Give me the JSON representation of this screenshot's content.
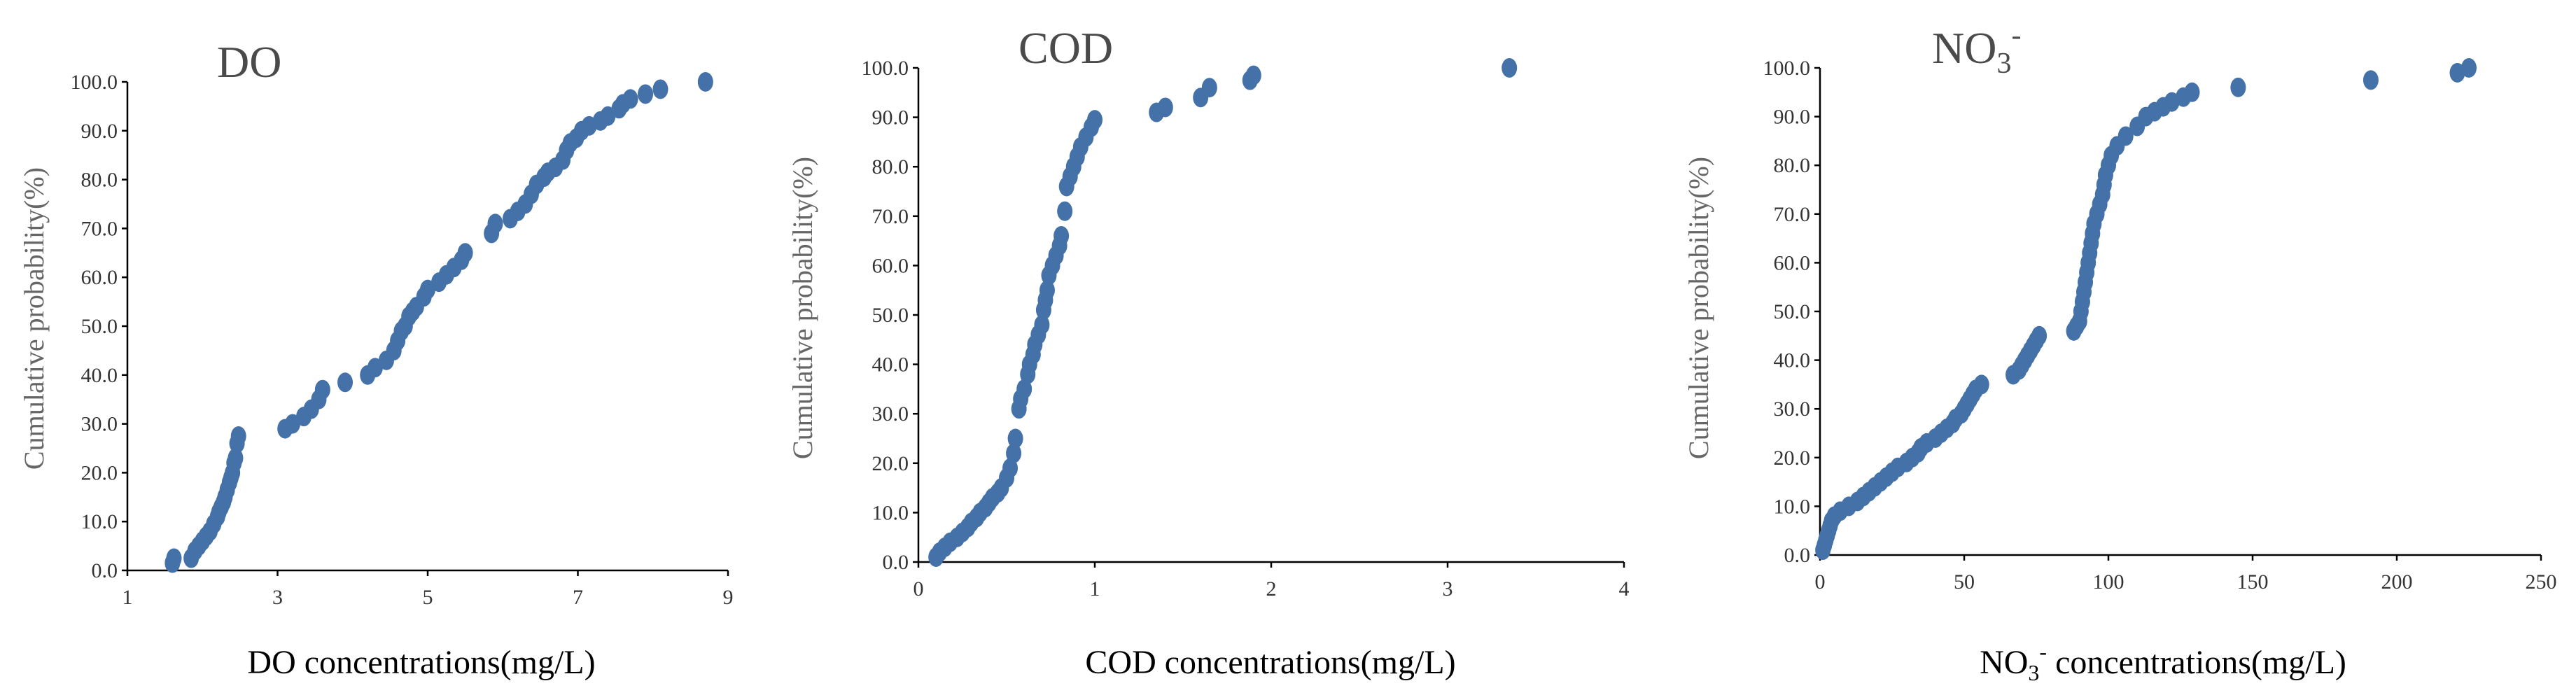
{
  "chart_data": [
    {
      "type": "scatter",
      "title": "DO",
      "xlabel": "DO concentrations(mg/L)",
      "ylabel": "Cumulative probability(%)",
      "xlim": [
        1,
        9
      ],
      "ylim": [
        0,
        100
      ],
      "xticks": [
        1,
        3,
        5,
        7,
        9
      ],
      "yticks": [
        0,
        10,
        20,
        30,
        40,
        50,
        60,
        70,
        80,
        90,
        100
      ],
      "tick_decimals": {
        "x": 0,
        "y": 1
      },
      "grid": false,
      "marker_color": "#4472A8",
      "points": [
        [
          1.6,
          1.5
        ],
        [
          1.62,
          2.5
        ],
        [
          1.85,
          2.5
        ],
        [
          1.9,
          4
        ],
        [
          1.95,
          5
        ],
        [
          2.0,
          6
        ],
        [
          2.05,
          7
        ],
        [
          2.1,
          8
        ],
        [
          2.15,
          9.5
        ],
        [
          2.2,
          11
        ],
        [
          2.22,
          12
        ],
        [
          2.25,
          13
        ],
        [
          2.28,
          14
        ],
        [
          2.3,
          15
        ],
        [
          2.33,
          16.5
        ],
        [
          2.36,
          18
        ],
        [
          2.38,
          19
        ],
        [
          2.4,
          20
        ],
        [
          2.42,
          22
        ],
        [
          2.44,
          23
        ],
        [
          2.46,
          26
        ],
        [
          2.48,
          27.5
        ],
        [
          3.1,
          29
        ],
        [
          3.2,
          30
        ],
        [
          3.35,
          31.5
        ],
        [
          3.45,
          33
        ],
        [
          3.55,
          35
        ],
        [
          3.6,
          37
        ],
        [
          3.9,
          38.5
        ],
        [
          4.2,
          40
        ],
        [
          4.3,
          41.5
        ],
        [
          4.45,
          43
        ],
        [
          4.55,
          45
        ],
        [
          4.6,
          47
        ],
        [
          4.65,
          49
        ],
        [
          4.7,
          50
        ],
        [
          4.75,
          52
        ],
        [
          4.8,
          53
        ],
        [
          4.85,
          54
        ],
        [
          4.95,
          56
        ],
        [
          5.0,
          57.5
        ],
        [
          5.15,
          59
        ],
        [
          5.25,
          60.5
        ],
        [
          5.35,
          62
        ],
        [
          5.45,
          63.5
        ],
        [
          5.5,
          65
        ],
        [
          5.85,
          69
        ],
        [
          5.9,
          71
        ],
        [
          6.1,
          72
        ],
        [
          6.2,
          73.5
        ],
        [
          6.3,
          75
        ],
        [
          6.38,
          77
        ],
        [
          6.45,
          79
        ],
        [
          6.55,
          80.5
        ],
        [
          6.6,
          81.5
        ],
        [
          6.7,
          82.5
        ],
        [
          6.8,
          84
        ],
        [
          6.85,
          86
        ],
        [
          6.9,
          87.5
        ],
        [
          6.98,
          88.5
        ],
        [
          7.05,
          90
        ],
        [
          7.15,
          91
        ],
        [
          7.3,
          92
        ],
        [
          7.4,
          93
        ],
        [
          7.55,
          94.5
        ],
        [
          7.6,
          95.5
        ],
        [
          7.7,
          96.5
        ],
        [
          7.9,
          97.5
        ],
        [
          8.1,
          98.5
        ],
        [
          8.7,
          100
        ]
      ]
    },
    {
      "type": "scatter",
      "title": "COD",
      "xlabel": "COD concentrations(mg/L)",
      "ylabel": "Cumulative probability(%)",
      "xlim": [
        0,
        4
      ],
      "ylim": [
        0,
        100
      ],
      "xticks": [
        0,
        1,
        2,
        3,
        4
      ],
      "yticks": [
        0,
        10,
        20,
        30,
        40,
        50,
        60,
        70,
        80,
        90,
        100
      ],
      "tick_decimals": {
        "x": 0,
        "y": 1
      },
      "grid": false,
      "marker_color": "#4472A8",
      "points": [
        [
          0.1,
          1
        ],
        [
          0.12,
          2
        ],
        [
          0.15,
          3
        ],
        [
          0.18,
          4
        ],
        [
          0.22,
          5
        ],
        [
          0.25,
          6
        ],
        [
          0.28,
          7
        ],
        [
          0.3,
          8
        ],
        [
          0.33,
          9
        ],
        [
          0.35,
          10
        ],
        [
          0.38,
          11
        ],
        [
          0.4,
          12
        ],
        [
          0.42,
          13
        ],
        [
          0.45,
          14
        ],
        [
          0.47,
          15
        ],
        [
          0.5,
          17
        ],
        [
          0.52,
          19
        ],
        [
          0.54,
          22
        ],
        [
          0.55,
          25
        ],
        [
          0.57,
          31
        ],
        [
          0.58,
          33
        ],
        [
          0.6,
          35
        ],
        [
          0.62,
          38
        ],
        [
          0.63,
          40
        ],
        [
          0.65,
          42
        ],
        [
          0.66,
          44
        ],
        [
          0.68,
          46
        ],
        [
          0.7,
          48
        ],
        [
          0.71,
          51
        ],
        [
          0.72,
          53
        ],
        [
          0.73,
          55
        ],
        [
          0.74,
          58
        ],
        [
          0.76,
          60
        ],
        [
          0.78,
          62
        ],
        [
          0.8,
          64
        ],
        [
          0.81,
          66
        ],
        [
          0.83,
          71
        ],
        [
          0.84,
          76
        ],
        [
          0.86,
          78
        ],
        [
          0.88,
          80
        ],
        [
          0.9,
          82
        ],
        [
          0.92,
          84
        ],
        [
          0.95,
          86
        ],
        [
          0.98,
          88
        ],
        [
          1.0,
          89.5
        ],
        [
          1.35,
          91
        ],
        [
          1.4,
          92
        ],
        [
          1.6,
          94
        ],
        [
          1.65,
          96
        ],
        [
          1.88,
          97.5
        ],
        [
          1.9,
          98.5
        ],
        [
          3.35,
          100
        ]
      ]
    },
    {
      "type": "scatter",
      "title": "NO",
      "title_sub": "3",
      "title_sup": "-",
      "xlabel_pre": "NO",
      "xlabel_sub": "3",
      "xlabel_sup": "-",
      "xlabel_post": " concentrations(mg/L)",
      "ylabel": "Cumulative probability(%)",
      "xlim": [
        0,
        250
      ],
      "ylim": [
        0,
        100
      ],
      "xticks": [
        0,
        50,
        100,
        150,
        200,
        250
      ],
      "yticks": [
        0,
        10,
        20,
        30,
        40,
        50,
        60,
        70,
        80,
        90,
        100
      ],
      "tick_decimals": {
        "x": 0,
        "y": 1
      },
      "grid": false,
      "marker_color": "#4472A8",
      "points": [
        [
          1,
          1
        ],
        [
          1.5,
          2
        ],
        [
          2,
          3
        ],
        [
          2.5,
          4
        ],
        [
          3,
          5
        ],
        [
          3.5,
          6
        ],
        [
          4,
          7
        ],
        [
          5,
          8
        ],
        [
          7,
          9
        ],
        [
          10,
          10
        ],
        [
          13,
          11
        ],
        [
          15,
          12
        ],
        [
          17,
          13
        ],
        [
          19,
          14
        ],
        [
          21,
          15
        ],
        [
          23,
          16
        ],
        [
          25,
          17
        ],
        [
          27,
          18
        ],
        [
          30,
          19
        ],
        [
          32,
          20
        ],
        [
          34,
          21
        ],
        [
          35,
          22
        ],
        [
          37,
          23
        ],
        [
          40,
          24
        ],
        [
          42,
          25
        ],
        [
          44,
          26
        ],
        [
          46,
          27
        ],
        [
          47,
          28
        ],
        [
          49,
          29
        ],
        [
          50,
          30
        ],
        [
          51,
          31
        ],
        [
          52,
          32
        ],
        [
          53,
          33
        ],
        [
          54,
          34
        ],
        [
          56,
          35
        ],
        [
          67,
          37
        ],
        [
          69,
          38
        ],
        [
          70,
          39
        ],
        [
          71,
          40
        ],
        [
          72,
          41
        ],
        [
          73,
          42
        ],
        [
          74,
          43
        ],
        [
          75,
          44
        ],
        [
          76,
          45
        ],
        [
          88,
          46
        ],
        [
          89,
          47
        ],
        [
          90,
          48
        ],
        [
          90.5,
          50
        ],
        [
          91,
          52
        ],
        [
          91.5,
          54
        ],
        [
          92,
          56
        ],
        [
          92.5,
          58
        ],
        [
          93,
          60
        ],
        [
          93.5,
          62
        ],
        [
          94,
          64
        ],
        [
          94.5,
          66
        ],
        [
          95,
          68
        ],
        [
          96,
          70
        ],
        [
          97,
          72
        ],
        [
          98,
          74
        ],
        [
          98.5,
          76
        ],
        [
          99,
          78
        ],
        [
          100,
          80
        ],
        [
          101,
          82
        ],
        [
          103,
          84
        ],
        [
          106,
          86
        ],
        [
          110,
          88
        ],
        [
          113,
          90
        ],
        [
          116,
          91
        ],
        [
          119,
          92
        ],
        [
          122,
          93
        ],
        [
          126,
          94
        ],
        [
          129,
          95
        ],
        [
          145,
          96
        ],
        [
          191,
          97.5
        ],
        [
          221,
          99
        ],
        [
          225,
          100
        ]
      ]
    }
  ]
}
